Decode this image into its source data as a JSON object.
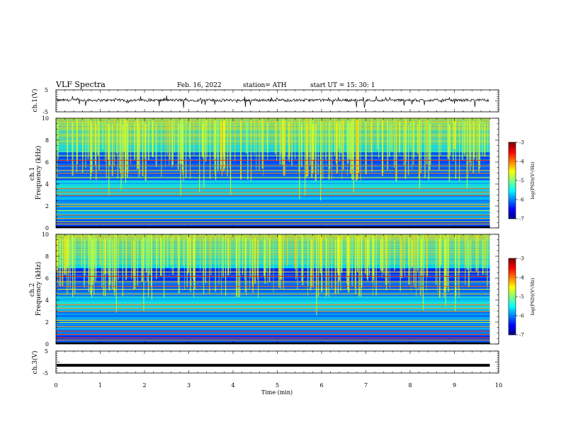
{
  "header": {
    "title": "VLF  Spectra",
    "date": "Feb. 16, 2022",
    "station": "station= ATH",
    "start": "start  UT  =    15: 30: 1"
  },
  "chart_data": [
    {
      "type": "line",
      "name": "ch1-waveform",
      "ylabel": "ch.1(V)",
      "ylim": [
        -5,
        5
      ],
      "yticks": [
        "5",
        "-5"
      ],
      "xlim": [
        0,
        10
      ],
      "x_end": 9.8,
      "baseline": 0.3,
      "style": "noisy waveform with downward spikes"
    },
    {
      "type": "heatmap",
      "name": "ch1-spectrogram",
      "ylabel": "ch.1\nFrequency  (kHz)",
      "ylim": [
        0,
        10
      ],
      "yticks": [
        "0",
        "2",
        "4",
        "6",
        "8",
        "10"
      ],
      "xlim": [
        0,
        10
      ],
      "x_end": 9.8,
      "colorbar": {
        "label": "log(PSD)(V²/Hz)",
        "range": [
          -7,
          -3
        ],
        "ticks": [
          "-3",
          "-4",
          "-5",
          "-6",
          "-7"
        ]
      }
    },
    {
      "type": "heatmap",
      "name": "ch2-spectrogram",
      "ylabel": "ch.2\nFrequency  (kHz)",
      "ylim": [
        0,
        10
      ],
      "yticks": [
        "0",
        "2",
        "4",
        "6",
        "8",
        "10"
      ],
      "xlim": [
        0,
        10
      ],
      "x_end": 9.8,
      "colorbar": {
        "label": "log(PSD)(V²/Hz)",
        "range": [
          -7,
          -3
        ],
        "ticks": [
          "-3",
          "-4",
          "-5",
          "-6",
          "-7"
        ]
      }
    },
    {
      "type": "line",
      "name": "ch3-waveform",
      "ylabel": "ch.3(V)",
      "ylim": [
        -5,
        5
      ],
      "yticks": [
        "5",
        "-5"
      ],
      "xlim": [
        0,
        10
      ],
      "x_end": 9.8,
      "baseline": -1.5,
      "style": "flat thick line"
    }
  ],
  "x_axis": {
    "label": "Time  (min)",
    "ticks": [
      "0",
      "1",
      "2",
      "3",
      "4",
      "5",
      "6",
      "7",
      "8",
      "9",
      "10"
    ]
  }
}
